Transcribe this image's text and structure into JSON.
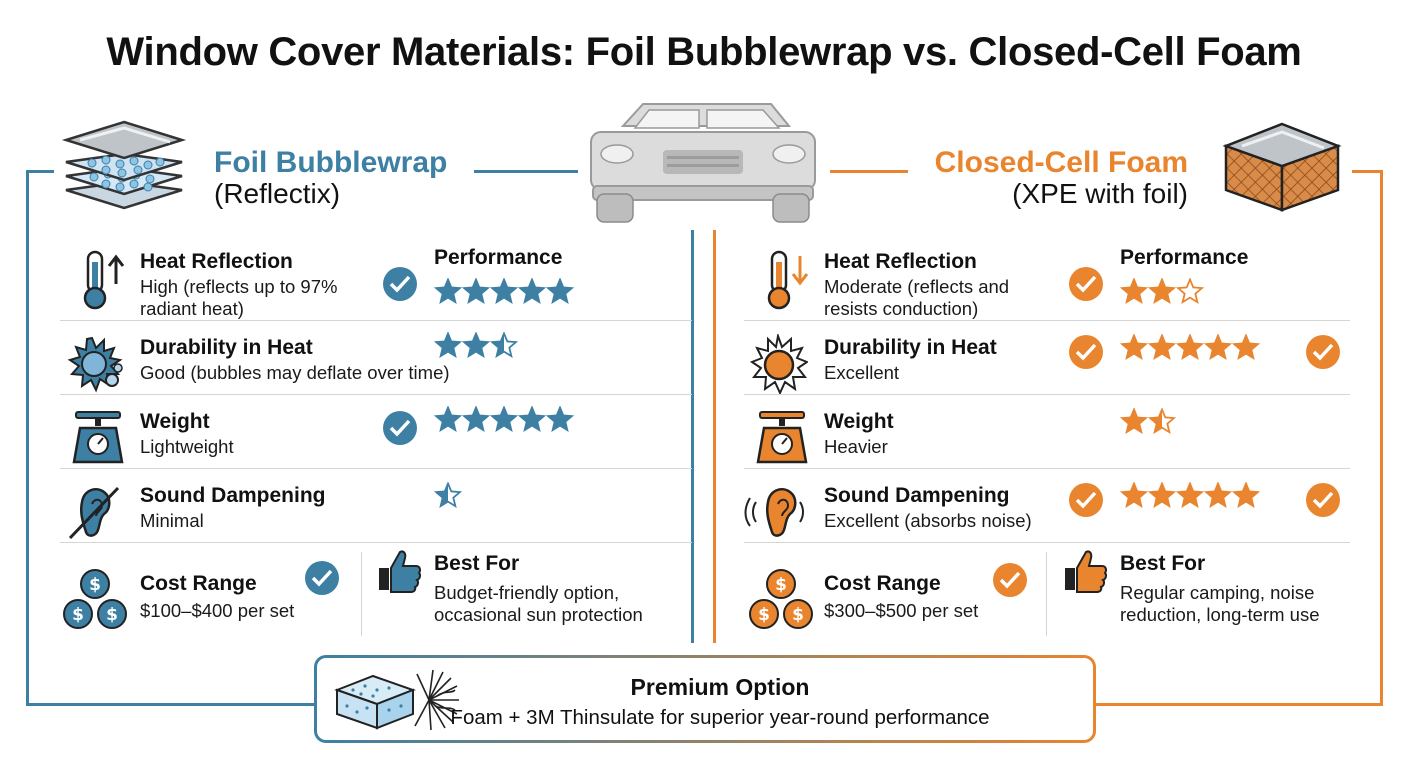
{
  "title": "Window Cover Materials: Foil Bubblewrap vs. Closed-Cell Foam",
  "colors": {
    "blue": "#3d80a4",
    "orange": "#e8852e"
  },
  "left": {
    "name": "Foil Bubblewrap",
    "subtitle": "(Reflectix)",
    "performance_label": "Performance",
    "rows": [
      {
        "icon": "thermometer-up-icon",
        "label": "Heat Reflection",
        "value": "High (reflects up to 97% radiant heat)",
        "checked": true,
        "rating": 5
      },
      {
        "icon": "sun-bubbles-icon",
        "label": "Durability in Heat",
        "value": "Good (bubbles may deflate over time)",
        "checked": false,
        "rating": 2.5
      },
      {
        "icon": "scale-icon",
        "label": "Weight",
        "value": "Lightweight",
        "checked": true,
        "rating": 5
      },
      {
        "icon": "ear-muted-icon",
        "label": "Sound Dampening",
        "value": "Minimal",
        "checked": false,
        "rating": 0.5
      }
    ],
    "cost": {
      "label": "Cost Range",
      "value": "$100–$400 per set",
      "checked": true
    },
    "best_for": {
      "label": "Best For",
      "value": "Budget-friendly option, occasional sun protection"
    }
  },
  "right": {
    "name": "Closed-Cell Foam",
    "subtitle": "(XPE with foil)",
    "performance_label": "Performance",
    "rows": [
      {
        "icon": "thermometer-down-icon",
        "label": "Heat Reflection",
        "value": "Moderate (reflects and resists conduction)",
        "checked": true,
        "rating": 2,
        "extra_check": false
      },
      {
        "icon": "sun-icon",
        "label": "Durability in Heat",
        "value": "Excellent",
        "checked": true,
        "rating": 5,
        "extra_check": true
      },
      {
        "icon": "scale-icon",
        "label": "Weight",
        "value": "Heavier",
        "checked": false,
        "rating": 1.5,
        "extra_check": false
      },
      {
        "icon": "ear-sound-icon",
        "label": "Sound Dampening",
        "value": "Excellent (absorbs noise)",
        "checked": true,
        "rating": 5,
        "extra_check": true
      }
    ],
    "cost": {
      "label": "Cost Range",
      "value": "$300–$500 per set",
      "checked": true
    },
    "best_for": {
      "label": "Best For",
      "value": "Regular camping, noise reduction, long-term use"
    }
  },
  "premium": {
    "title": "Premium Option",
    "subtitle": "Foam + 3M Thinsulate for superior year-round performance"
  }
}
